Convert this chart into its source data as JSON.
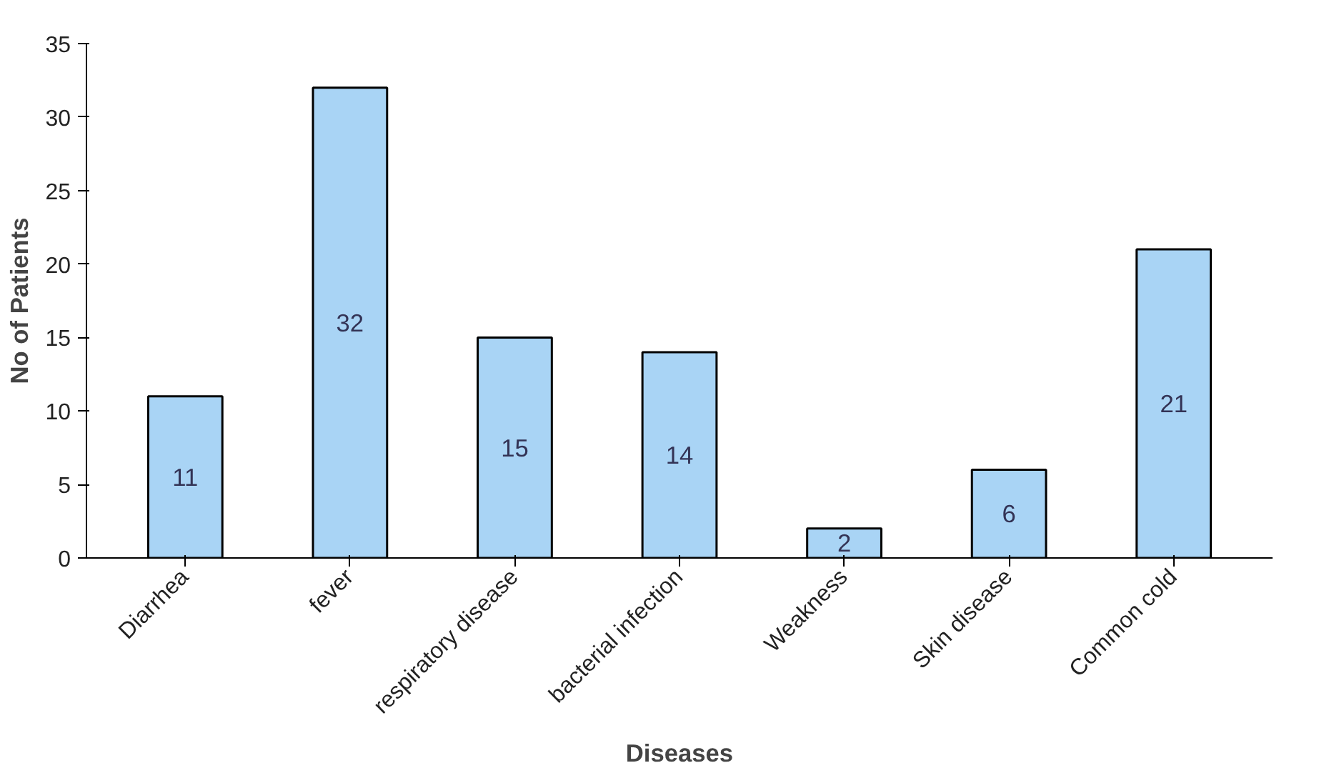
{
  "chart_data": {
    "type": "bar",
    "xlabel": "Diseases",
    "ylabel": "No of Patients",
    "categories": [
      "Diarrhea",
      "fever",
      "respiratory disease",
      "bacterial infection",
      "Weakness",
      "Skin disease",
      "Common cold"
    ],
    "values": [
      11,
      32,
      15,
      14,
      2,
      6,
      21
    ],
    "color": "#a9d4f5",
    "ylim": [
      0,
      35
    ],
    "yticks": [
      0,
      5,
      10,
      15,
      20,
      25,
      30,
      35
    ],
    "data_labels": true,
    "grid": false
  }
}
